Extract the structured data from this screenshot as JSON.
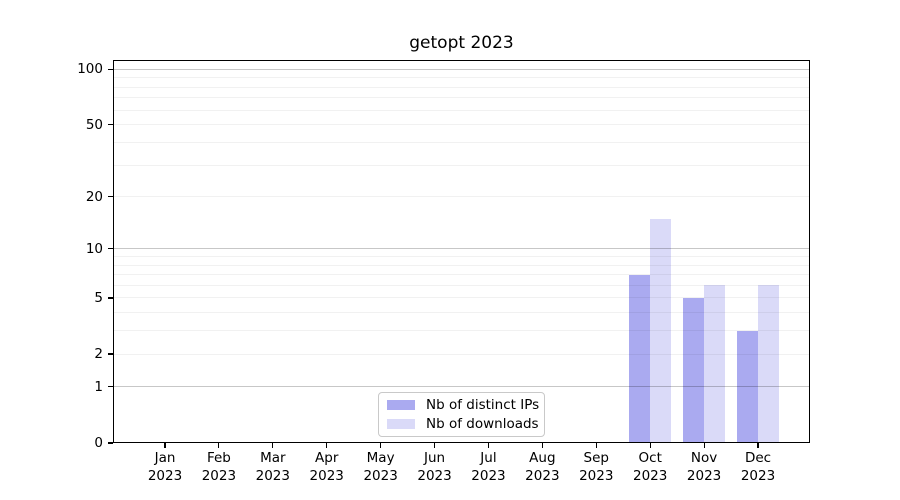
{
  "title": "getopt 2023",
  "chart_data": {
    "type": "bar",
    "title": "getopt 2023",
    "categories": [
      "Jan",
      "Feb",
      "Mar",
      "Apr",
      "May",
      "Jun",
      "Jul",
      "Aug",
      "Sep",
      "Oct",
      "Nov",
      "Dec"
    ],
    "category_year": "2023",
    "series": [
      {
        "name": "Nb of distinct IPs",
        "color": "#aaaaf0",
        "values": [
          0,
          0,
          0,
          0,
          0,
          0,
          0,
          0,
          0,
          7,
          5,
          3
        ]
      },
      {
        "name": "Nb of downloads",
        "color": "#dadaf8",
        "values": [
          0,
          0,
          0,
          0,
          0,
          0,
          0,
          0,
          0,
          15,
          6,
          6
        ]
      }
    ],
    "y_scale": "log10(1+value)",
    "y_ticks": [
      0,
      1,
      2,
      5,
      10,
      20,
      50,
      100
    ],
    "y_minor_grid": [
      2,
      3,
      4,
      5,
      6,
      7,
      8,
      9,
      20,
      30,
      40,
      50,
      60,
      70,
      80,
      90
    ],
    "y_major_grid": [
      1,
      10,
      100
    ],
    "ylim": [
      0,
      113
    ],
    "xlabel": "",
    "ylabel": "",
    "grid": "horizontal",
    "legend_position": "lower center"
  },
  "colors": {
    "background": "#ffffff",
    "spine": "#000000",
    "major_grid": "#c6c6c6",
    "minor_grid": "#efefef",
    "text": "#000000"
  }
}
